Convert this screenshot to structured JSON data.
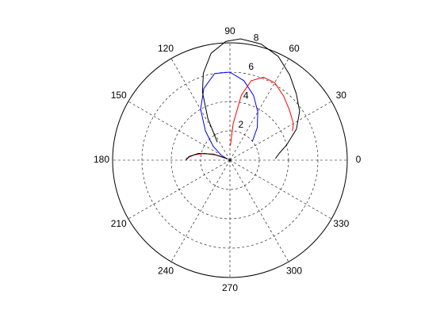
{
  "chart_data": {
    "type": "polar",
    "rlim": [
      0,
      8
    ],
    "rticks": [
      2,
      4,
      6,
      8
    ],
    "thetaticks": [
      0,
      30,
      60,
      90,
      120,
      150,
      180,
      210,
      240,
      270,
      300,
      330
    ],
    "grid": true,
    "series": [
      {
        "color": "#0000ff",
        "theta": [
          40,
          50,
          60,
          70,
          80,
          90,
          100,
          110,
          120,
          130,
          140,
          150,
          160
        ],
        "r": [
          2.0,
          2.9,
          3.8,
          4.7,
          5.5,
          6.0,
          6.0,
          5.2,
          4.0,
          2.6,
          1.5,
          0.7,
          0.2
        ]
      },
      {
        "color": "#ff0000",
        "theta": [
          88,
          85,
          80,
          75,
          68,
          60,
          50,
          40,
          30,
          25,
          null,
          178,
          172,
          165,
          160,
          155
        ],
        "r": [
          1.0,
          2.5,
          4.5,
          5.6,
          6.1,
          6.1,
          5.7,
          5.3,
          5.0,
          4.7,
          null,
          3.0,
          2.5,
          1.8,
          1.0,
          0.3
        ]
      },
      {
        "color": "#000000",
        "theta": [
          125,
          118,
          112,
          107,
          100,
          92,
          85,
          75,
          65,
          55,
          45,
          35,
          25,
          15,
          8,
          2,
          null,
          180,
          175,
          168,
          160,
          150
        ],
        "r": [
          1.5,
          3.2,
          5.0,
          6.2,
          7.4,
          8.1,
          8.3,
          8.2,
          7.8,
          7.1,
          6.4,
          5.8,
          5.0,
          4.0,
          3.4,
          3.1,
          null,
          3.0,
          2.8,
          2.2,
          1.2,
          0.2
        ]
      }
    ]
  }
}
